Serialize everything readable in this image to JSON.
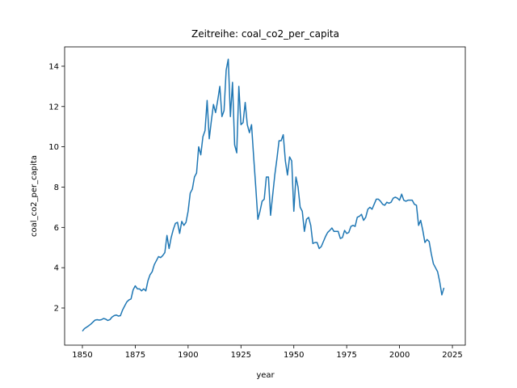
{
  "chart_data": {
    "type": "line",
    "title": "Zeitreihe: coal_co2_per_capita",
    "xlabel": "year",
    "ylabel": "coal_co2_per_capita",
    "color": "#1f77b4",
    "x": [
      1850,
      1851,
      1852,
      1853,
      1854,
      1855,
      1856,
      1857,
      1858,
      1859,
      1860,
      1861,
      1862,
      1863,
      1864,
      1865,
      1866,
      1867,
      1868,
      1869,
      1870,
      1871,
      1872,
      1873,
      1874,
      1875,
      1876,
      1877,
      1878,
      1879,
      1880,
      1881,
      1882,
      1883,
      1884,
      1885,
      1886,
      1887,
      1888,
      1889,
      1890,
      1891,
      1892,
      1893,
      1894,
      1895,
      1896,
      1897,
      1898,
      1899,
      1900,
      1901,
      1902,
      1903,
      1904,
      1905,
      1906,
      1907,
      1908,
      1909,
      1910,
      1911,
      1912,
      1913,
      1914,
      1915,
      1916,
      1917,
      1918,
      1919,
      1920,
      1921,
      1922,
      1923,
      1924,
      1925,
      1926,
      1927,
      1928,
      1929,
      1930,
      1931,
      1932,
      1933,
      1934,
      1935,
      1936,
      1937,
      1938,
      1939,
      1940,
      1941,
      1942,
      1943,
      1944,
      1945,
      1946,
      1947,
      1948,
      1949,
      1950,
      1951,
      1952,
      1953,
      1954,
      1955,
      1956,
      1957,
      1958,
      1959,
      1960,
      1961,
      1962,
      1963,
      1964,
      1965,
      1966,
      1967,
      1968,
      1969,
      1970,
      1971,
      1972,
      1973,
      1974,
      1975,
      1976,
      1977,
      1978,
      1979,
      1980,
      1981,
      1982,
      1983,
      1984,
      1985,
      1986,
      1987,
      1988,
      1989,
      1990,
      1991,
      1992,
      1993,
      1994,
      1995,
      1996,
      1997,
      1998,
      1999,
      2000,
      2001,
      2002,
      2003,
      2004,
      2005,
      2006,
      2007,
      2008,
      2009,
      2010,
      2011,
      2012,
      2013,
      2014,
      2015,
      2016,
      2017,
      2018,
      2019,
      2020,
      2021
    ],
    "values": [
      0.85,
      0.98,
      1.05,
      1.12,
      1.2,
      1.3,
      1.4,
      1.42,
      1.4,
      1.42,
      1.48,
      1.45,
      1.38,
      1.42,
      1.55,
      1.62,
      1.65,
      1.6,
      1.62,
      1.9,
      2.1,
      2.3,
      2.4,
      2.45,
      2.9,
      3.1,
      2.95,
      2.95,
      2.85,
      2.95,
      2.85,
      3.35,
      3.65,
      3.8,
      4.15,
      4.35,
      4.55,
      4.5,
      4.6,
      4.75,
      5.6,
      4.95,
      5.5,
      5.9,
      6.2,
      6.25,
      5.7,
      6.3,
      6.1,
      6.25,
      6.8,
      7.7,
      7.9,
      8.5,
      8.7,
      10.0,
      9.6,
      10.5,
      10.8,
      12.3,
      10.4,
      11.3,
      12.1,
      11.7,
      12.3,
      13.0,
      11.5,
      11.8,
      13.8,
      14.35,
      11.5,
      13.2,
      10.1,
      9.7,
      13.0,
      11.1,
      11.2,
      12.2,
      11.1,
      10.7,
      11.1,
      9.5,
      8.0,
      6.4,
      6.8,
      7.3,
      7.4,
      8.5,
      8.5,
      6.6,
      7.6,
      8.6,
      9.4,
      10.3,
      10.3,
      10.6,
      9.3,
      8.6,
      9.5,
      9.3,
      6.8,
      8.5,
      8.0,
      7.0,
      6.8,
      5.8,
      6.4,
      6.5,
      6.1,
      5.2,
      5.25,
      5.25,
      4.95,
      5.05,
      5.3,
      5.55,
      5.75,
      5.85,
      5.97,
      5.8,
      5.8,
      5.8,
      5.45,
      5.5,
      5.85,
      5.7,
      5.75,
      6.05,
      6.1,
      6.05,
      6.5,
      6.55,
      6.65,
      6.35,
      6.5,
      6.9,
      7.0,
      6.9,
      7.15,
      7.4,
      7.4,
      7.3,
      7.15,
      7.1,
      7.25,
      7.2,
      7.25,
      7.45,
      7.5,
      7.45,
      7.35,
      7.65,
      7.35,
      7.3,
      7.35,
      7.35,
      7.35,
      7.15,
      7.1,
      6.1,
      6.35,
      5.85,
      5.25,
      5.4,
      5.3,
      4.7,
      4.2,
      4.0,
      3.8,
      3.3,
      2.65,
      3.0
    ],
    "xlim": [
      1841.6,
      2031.1
    ],
    "ylim": [
      0.155,
      14.96
    ],
    "xticks": [
      1850,
      1875,
      1900,
      1925,
      1950,
      1975,
      2000,
      2025
    ],
    "yticks": [
      2,
      4,
      6,
      8,
      10,
      12,
      14
    ]
  }
}
